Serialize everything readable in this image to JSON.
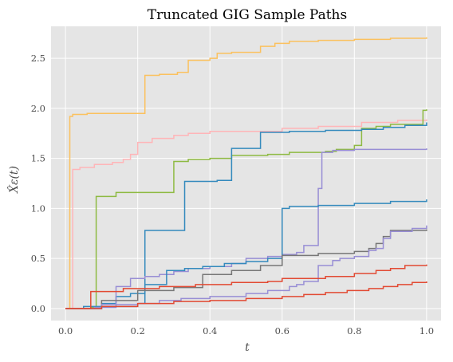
{
  "chart_data": {
    "type": "line",
    "title": "Truncated GIG Sample Paths",
    "xlabel": "t",
    "ylabel": "X̂ε(t)",
    "xlim": [
      -0.04,
      1.04
    ],
    "ylim": [
      -0.12,
      2.82
    ],
    "xticks": [
      "0.0",
      "0.2",
      "0.4",
      "0.6",
      "0.8",
      "1.0"
    ],
    "yticks": [
      "0.0",
      "0.5",
      "1.0",
      "1.5",
      "2.0",
      "2.5"
    ],
    "grid": true,
    "background": "#E5E5E5",
    "series": [
      {
        "color": "#FBC15E",
        "points": [
          [
            0,
            0
          ],
          [
            0.012,
            0
          ],
          [
            0.012,
            1.92
          ],
          [
            0.02,
            1.94
          ],
          [
            0.06,
            1.95
          ],
          [
            0.22,
            1.96
          ],
          [
            0.22,
            2.33
          ],
          [
            0.26,
            2.34
          ],
          [
            0.31,
            2.36
          ],
          [
            0.34,
            2.36
          ],
          [
            0.34,
            2.48
          ],
          [
            0.4,
            2.5
          ],
          [
            0.42,
            2.55
          ],
          [
            0.46,
            2.56
          ],
          [
            0.5,
            2.56
          ],
          [
            0.54,
            2.62
          ],
          [
            0.58,
            2.65
          ],
          [
            0.62,
            2.67
          ],
          [
            0.7,
            2.68
          ],
          [
            0.8,
            2.69
          ],
          [
            0.9,
            2.7
          ],
          [
            1.0,
            2.71
          ]
        ]
      },
      {
        "color": "#FFB5B8",
        "points": [
          [
            0,
            0
          ],
          [
            0.02,
            0
          ],
          [
            0.02,
            1.39
          ],
          [
            0.04,
            1.41
          ],
          [
            0.08,
            1.44
          ],
          [
            0.13,
            1.46
          ],
          [
            0.16,
            1.49
          ],
          [
            0.18,
            1.54
          ],
          [
            0.2,
            1.66
          ],
          [
            0.24,
            1.7
          ],
          [
            0.3,
            1.73
          ],
          [
            0.34,
            1.75
          ],
          [
            0.4,
            1.77
          ],
          [
            0.48,
            1.77
          ],
          [
            0.6,
            1.8
          ],
          [
            0.7,
            1.82
          ],
          [
            0.82,
            1.86
          ],
          [
            0.92,
            1.88
          ],
          [
            1.0,
            1.89
          ]
        ]
      },
      {
        "color": "#8EBA42",
        "points": [
          [
            0,
            0
          ],
          [
            0.07,
            0.01
          ],
          [
            0.085,
            0.01
          ],
          [
            0.085,
            1.12
          ],
          [
            0.14,
            1.13
          ],
          [
            0.14,
            1.16
          ],
          [
            0.3,
            1.17
          ],
          [
            0.3,
            1.47
          ],
          [
            0.34,
            1.49
          ],
          [
            0.4,
            1.5
          ],
          [
            0.46,
            1.51
          ],
          [
            0.46,
            1.53
          ],
          [
            0.56,
            1.54
          ],
          [
            0.62,
            1.56
          ],
          [
            0.72,
            1.57
          ],
          [
            0.75,
            1.59
          ],
          [
            0.8,
            1.63
          ],
          [
            0.82,
            1.65
          ],
          [
            0.82,
            1.8
          ],
          [
            0.86,
            1.82
          ],
          [
            0.9,
            1.84
          ],
          [
            0.99,
            1.88
          ],
          [
            0.99,
            1.98
          ],
          [
            1.0,
            1.99
          ]
        ]
      },
      {
        "color": "#348ABD",
        "points": [
          [
            0,
            0
          ],
          [
            0.05,
            0.02
          ],
          [
            0.1,
            0.05
          ],
          [
            0.14,
            0.12
          ],
          [
            0.18,
            0.15
          ],
          [
            0.22,
            0.16
          ],
          [
            0.22,
            0.78
          ],
          [
            0.33,
            0.78
          ],
          [
            0.33,
            1.27
          ],
          [
            0.42,
            1.28
          ],
          [
            0.46,
            1.3
          ],
          [
            0.46,
            1.6
          ],
          [
            0.52,
            1.6
          ],
          [
            0.54,
            1.76
          ],
          [
            0.62,
            1.77
          ],
          [
            0.72,
            1.78
          ],
          [
            0.82,
            1.79
          ],
          [
            0.88,
            1.81
          ],
          [
            0.94,
            1.83
          ],
          [
            1.0,
            1.86
          ]
        ]
      },
      {
        "color": "#988ED5",
        "points": [
          [
            0,
            0
          ],
          [
            0.08,
            0.01
          ],
          [
            0.14,
            0.22
          ],
          [
            0.18,
            0.3
          ],
          [
            0.22,
            0.32
          ],
          [
            0.26,
            0.34
          ],
          [
            0.3,
            0.37
          ],
          [
            0.34,
            0.4
          ],
          [
            0.4,
            0.42
          ],
          [
            0.46,
            0.45
          ],
          [
            0.5,
            0.5
          ],
          [
            0.56,
            0.52
          ],
          [
            0.6,
            0.54
          ],
          [
            0.64,
            0.56
          ],
          [
            0.66,
            0.63
          ],
          [
            0.7,
            0.7
          ],
          [
            0.7,
            1.2
          ],
          [
            0.7,
            1.2
          ],
          [
            0.71,
            1.2
          ],
          [
            0.71,
            1.56
          ],
          [
            0.74,
            1.58
          ],
          [
            0.8,
            1.59
          ],
          [
            0.9,
            1.59
          ],
          [
            1.0,
            1.6
          ]
        ]
      },
      {
        "color": "#348ABD",
        "points": [
          [
            0,
            0
          ],
          [
            0.1,
            0.02
          ],
          [
            0.2,
            0.05
          ],
          [
            0.22,
            0.24
          ],
          [
            0.28,
            0.38
          ],
          [
            0.33,
            0.4
          ],
          [
            0.38,
            0.42
          ],
          [
            0.44,
            0.45
          ],
          [
            0.5,
            0.47
          ],
          [
            0.56,
            0.5
          ],
          [
            0.6,
            0.52
          ],
          [
            0.6,
            1.0
          ],
          [
            0.62,
            1.02
          ],
          [
            0.7,
            1.03
          ],
          [
            0.8,
            1.05
          ],
          [
            0.9,
            1.07
          ],
          [
            1.0,
            1.09
          ]
        ]
      },
      {
        "color": "#777777",
        "points": [
          [
            0,
            0
          ],
          [
            0.1,
            0.08
          ],
          [
            0.2,
            0.18
          ],
          [
            0.3,
            0.21
          ],
          [
            0.38,
            0.24
          ],
          [
            0.38,
            0.34
          ],
          [
            0.46,
            0.38
          ],
          [
            0.54,
            0.43
          ],
          [
            0.6,
            0.53
          ],
          [
            0.7,
            0.55
          ],
          [
            0.8,
            0.57
          ],
          [
            0.84,
            0.6
          ],
          [
            0.86,
            0.65
          ],
          [
            0.88,
            0.72
          ],
          [
            0.9,
            0.78
          ],
          [
            1.0,
            0.79
          ]
        ]
      },
      {
        "color": "#988ED5",
        "points": [
          [
            0,
            0
          ],
          [
            0.1,
            0.04
          ],
          [
            0.2,
            0.05
          ],
          [
            0.26,
            0.08
          ],
          [
            0.32,
            0.1
          ],
          [
            0.4,
            0.12
          ],
          [
            0.5,
            0.15
          ],
          [
            0.56,
            0.18
          ],
          [
            0.62,
            0.22
          ],
          [
            0.64,
            0.24
          ],
          [
            0.66,
            0.27
          ],
          [
            0.7,
            0.43
          ],
          [
            0.74,
            0.48
          ],
          [
            0.76,
            0.5
          ],
          [
            0.8,
            0.52
          ],
          [
            0.84,
            0.58
          ],
          [
            0.86,
            0.6
          ],
          [
            0.88,
            0.7
          ],
          [
            0.9,
            0.77
          ],
          [
            0.96,
            0.8
          ],
          [
            1.0,
            0.83
          ]
        ]
      },
      {
        "color": "#E24A33",
        "points": [
          [
            0,
            0
          ],
          [
            0.07,
            0.01
          ],
          [
            0.07,
            0.17
          ],
          [
            0.16,
            0.2
          ],
          [
            0.26,
            0.22
          ],
          [
            0.36,
            0.24
          ],
          [
            0.46,
            0.26
          ],
          [
            0.56,
            0.27
          ],
          [
            0.6,
            0.3
          ],
          [
            0.66,
            0.3
          ],
          [
            0.72,
            0.32
          ],
          [
            0.8,
            0.35
          ],
          [
            0.86,
            0.38
          ],
          [
            0.9,
            0.4
          ],
          [
            0.94,
            0.43
          ],
          [
            1.0,
            0.44
          ]
        ]
      },
      {
        "color": "#E24A33",
        "points": [
          [
            0,
            0
          ],
          [
            0.1,
            0.02
          ],
          [
            0.2,
            0.05
          ],
          [
            0.3,
            0.07
          ],
          [
            0.4,
            0.08
          ],
          [
            0.5,
            0.1
          ],
          [
            0.6,
            0.12
          ],
          [
            0.66,
            0.14
          ],
          [
            0.72,
            0.16
          ],
          [
            0.78,
            0.18
          ],
          [
            0.84,
            0.2
          ],
          [
            0.88,
            0.22
          ],
          [
            0.92,
            0.24
          ],
          [
            0.96,
            0.26
          ],
          [
            1.0,
            0.27
          ]
        ]
      }
    ]
  }
}
